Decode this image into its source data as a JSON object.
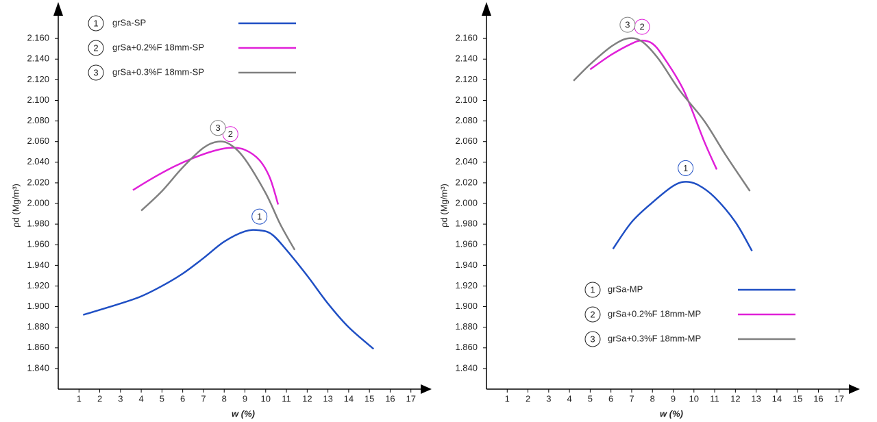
{
  "chart_data": [
    {
      "type": "line",
      "x_label": "w (%)",
      "y_label": "ρd (Mg/m³)",
      "legend": "upper left",
      "xlim": [
        0,
        18
      ],
      "ylim": [
        1.82,
        2.19
      ],
      "xticks": [
        1,
        2,
        3,
        4,
        5,
        6,
        7,
        8,
        9,
        10,
        11,
        12,
        13,
        14,
        15,
        16,
        17
      ],
      "yticks": [
        {
          "value": 1.84,
          "label": "1.840"
        },
        {
          "value": 1.86,
          "label": "1.860"
        },
        {
          "value": 1.88,
          "label": "1.880"
        },
        {
          "value": 1.9,
          "label": "1.900"
        },
        {
          "value": 1.92,
          "label": "1.920"
        },
        {
          "value": 1.94,
          "label": "1.940"
        },
        {
          "value": 1.96,
          "label": "1.960"
        },
        {
          "value": 1.98,
          "label": "1.980"
        },
        {
          "value": 2.0,
          "label": "2.000"
        },
        {
          "value": 2.02,
          "label": "2.020"
        },
        {
          "value": 2.04,
          "label": "2.040"
        },
        {
          "value": 2.06,
          "label": "2.060"
        },
        {
          "value": 2.08,
          "label": "2.080"
        },
        {
          "value": 2.1,
          "label": "2.100"
        },
        {
          "value": 2.12,
          "label": "2.120"
        },
        {
          "value": 2.14,
          "label": "2.140"
        },
        {
          "value": 2.16,
          "label": "2.160"
        }
      ],
      "series": [
        {
          "name": "grSa-SP",
          "tag": "1",
          "color": "#1f4fc4",
          "x": [
            1.2,
            3,
            4,
            5,
            6,
            7,
            8,
            9,
            9.7,
            10.3,
            11,
            12,
            13,
            14,
            15.2
          ],
          "values": [
            1.892,
            1.903,
            1.91,
            1.92,
            1.932,
            1.947,
            1.963,
            1.973,
            1.974,
            1.97,
            1.955,
            1.93,
            1.903,
            1.88,
            1.859
          ]
        },
        {
          "name": "grSa+0.2%F 18mm-SP",
          "tag": "2",
          "color": "#e020d8",
          "x": [
            3.6,
            4.5,
            5.5,
            6.5,
            7.5,
            8.3,
            9,
            9.7,
            10.2,
            10.6
          ],
          "values": [
            2.013,
            2.024,
            2.035,
            2.044,
            2.051,
            2.054,
            2.052,
            2.042,
            2.025,
            1.999
          ]
        },
        {
          "name": "grSa+0.3%F 18mm-SP",
          "tag": "3",
          "color": "#808080",
          "x": [
            4,
            5,
            6,
            7,
            7.7,
            8.3,
            9,
            10,
            10.7,
            11.4
          ],
          "values": [
            1.993,
            2.012,
            2.035,
            2.054,
            2.06,
            2.057,
            2.043,
            2.01,
            1.98,
            1.955
          ]
        }
      ]
    },
    {
      "type": "line",
      "x_label": "w (%)",
      "y_label": "ρd (Mg/m³)",
      "legend": "lower center",
      "xlim": [
        0,
        18
      ],
      "ylim": [
        1.82,
        2.19
      ],
      "xticks": [
        1,
        2,
        3,
        4,
        5,
        6,
        7,
        8,
        9,
        10,
        11,
        12,
        13,
        14,
        15,
        16,
        17
      ],
      "yticks": [
        {
          "value": 1.84,
          "label": "1.840"
        },
        {
          "value": 1.86,
          "label": "1.860"
        },
        {
          "value": 1.88,
          "label": "1.880"
        },
        {
          "value": 1.9,
          "label": "1.900"
        },
        {
          "value": 1.92,
          "label": "1.920"
        },
        {
          "value": 1.94,
          "label": "1.940"
        },
        {
          "value": 1.96,
          "label": "1.960"
        },
        {
          "value": 1.98,
          "label": "1.980"
        },
        {
          "value": 2.0,
          "label": "2.000"
        },
        {
          "value": 2.02,
          "label": "2.020"
        },
        {
          "value": 2.04,
          "label": "2.040"
        },
        {
          "value": 2.06,
          "label": "2.060"
        },
        {
          "value": 2.08,
          "label": "2.080"
        },
        {
          "value": 2.1,
          "label": "2.100"
        },
        {
          "value": 2.12,
          "label": "2.120"
        },
        {
          "value": 2.14,
          "label": "2.140"
        },
        {
          "value": 2.16,
          "label": "2.160"
        }
      ],
      "series": [
        {
          "name": "grSa-MP",
          "tag": "1",
          "color": "#1f4fc4",
          "x": [
            6.1,
            7,
            8,
            9,
            9.6,
            10.2,
            11,
            12,
            12.8
          ],
          "values": [
            1.956,
            1.982,
            2.001,
            2.017,
            2.021,
            2.018,
            2.006,
            1.982,
            1.954
          ]
        },
        {
          "name": "grSa+0.2%F 18mm-MP",
          "tag": "2",
          "color": "#e020d8",
          "x": [
            5,
            6,
            7,
            7.5,
            8,
            8.5,
            9.5,
            10.5,
            11.1
          ],
          "values": [
            2.13,
            2.144,
            2.155,
            2.158,
            2.155,
            2.143,
            2.11,
            2.06,
            2.033
          ]
        },
        {
          "name": "grSa+0.3%F 18mm-MP",
          "tag": "3",
          "color": "#808080",
          "x": [
            4.2,
            5,
            6,
            6.8,
            7.5,
            8.3,
            9.3,
            10.5,
            11.5,
            12.7
          ],
          "values": [
            2.119,
            2.135,
            2.152,
            2.16,
            2.157,
            2.14,
            2.11,
            2.08,
            2.048,
            2.012
          ]
        }
      ]
    }
  ]
}
